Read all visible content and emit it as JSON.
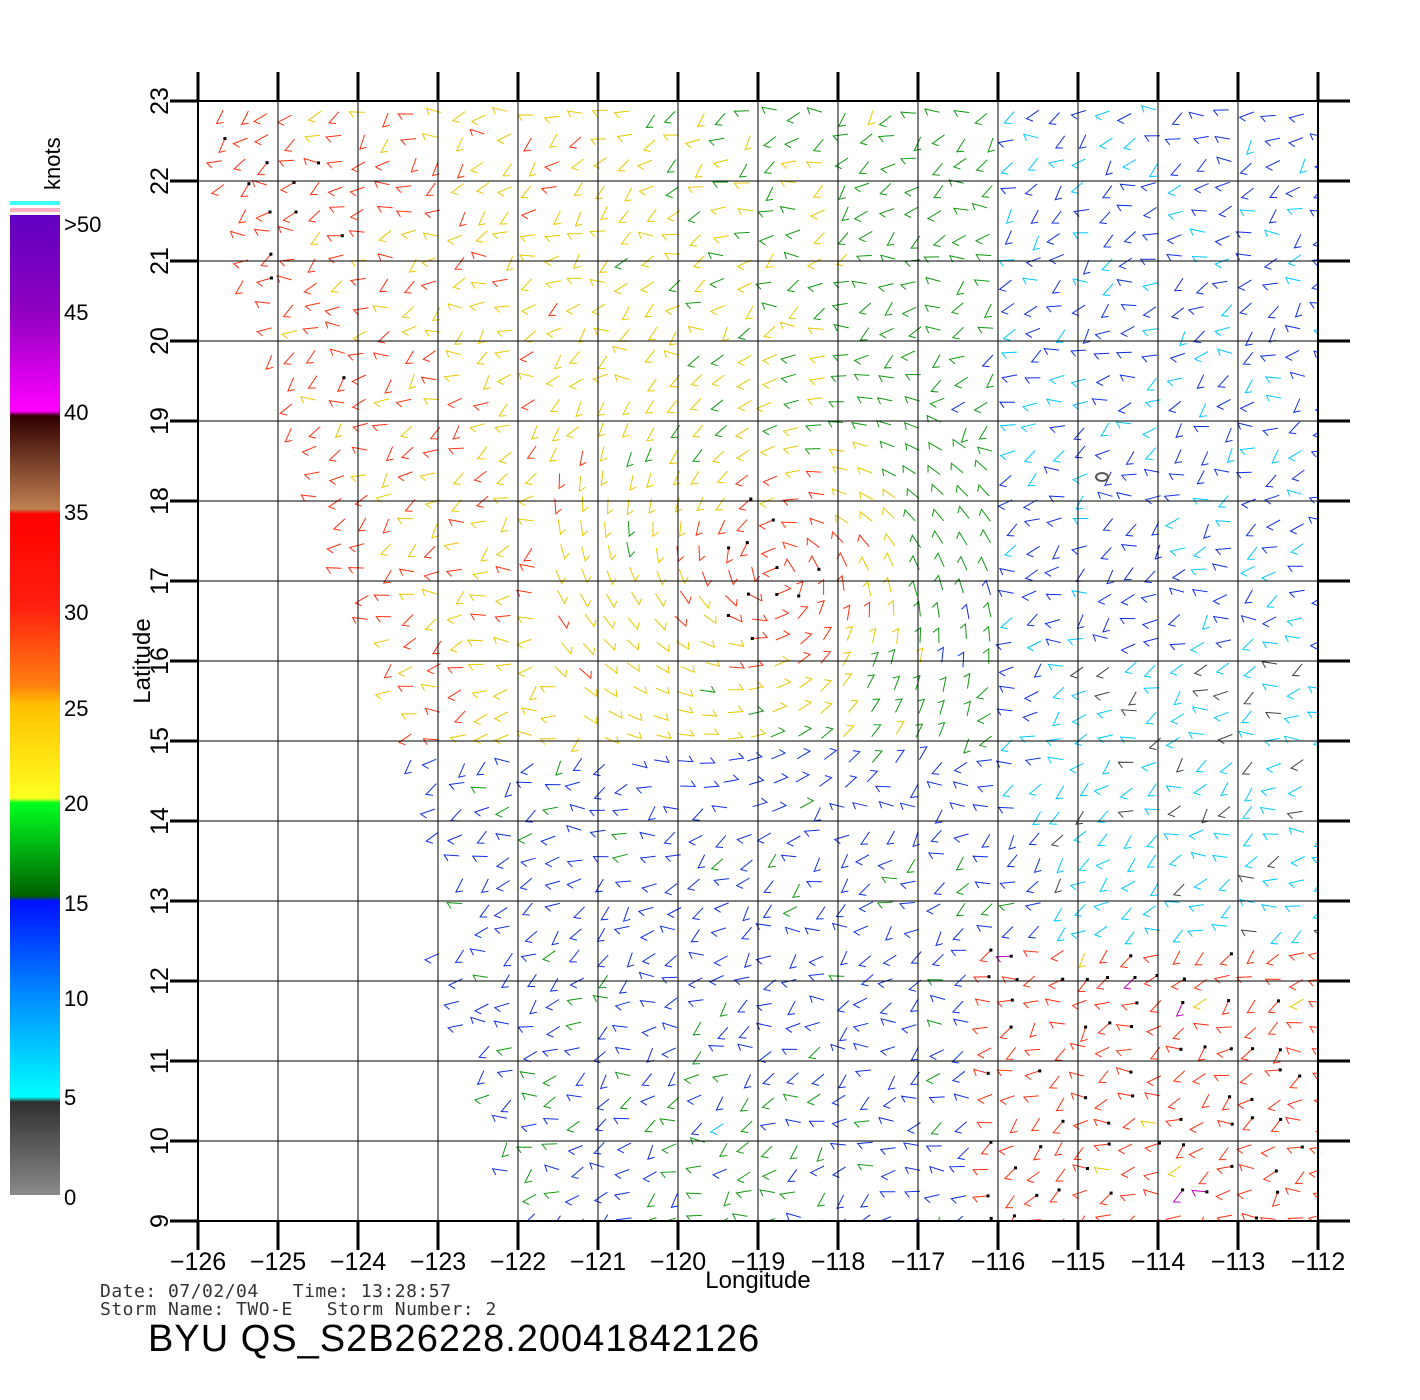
{
  "chart_data": {
    "type": "wind-barb-map",
    "xlabel": "Longitude",
    "ylabel": "Latitude",
    "x_ticks": [
      -126,
      -125,
      -124,
      -123,
      -122,
      -121,
      -120,
      -119,
      -118,
      -117,
      -116,
      -115,
      -114,
      -113,
      -112
    ],
    "y_ticks": [
      9,
      10,
      11,
      12,
      13,
      14,
      15,
      16,
      17,
      18,
      19,
      20,
      21,
      22,
      23
    ],
    "xlim": [
      -126,
      -111.5
    ],
    "ylim": [
      9,
      23
    ],
    "grid": true,
    "colorbar": {
      "unit": "knots",
      "labels": [
        ">50",
        "45",
        "40",
        "35",
        "30",
        "25",
        "20",
        "15",
        "10",
        "5",
        "0"
      ],
      "bands": [
        {
          "range": [
            0,
            5
          ],
          "colors": [
            "#8a8a8a",
            "#303030"
          ]
        },
        {
          "range": [
            5,
            15
          ],
          "colors": [
            "#00ffff",
            "#0090ff",
            "#0010ff"
          ]
        },
        {
          "range": [
            15,
            20
          ],
          "colors": [
            "#006000",
            "#00ff20"
          ]
        },
        {
          "range": [
            20,
            25
          ],
          "colors": [
            "#ffff20",
            "#ffc000"
          ]
        },
        {
          "range": [
            25,
            35
          ],
          "colors": [
            "#ff8010",
            "#ff2010",
            "#ff0000"
          ]
        },
        {
          "range": [
            35,
            40
          ],
          "colors": [
            "#c08050",
            "#300000"
          ]
        },
        {
          "range": [
            40,
            50
          ],
          "colors": [
            "#ff00ff",
            "#9000c0",
            "#6000c0"
          ]
        }
      ],
      "top_stripes": [
        "#40ffff",
        "#ffb0c0"
      ]
    },
    "storm_center": {
      "lon": -114.7,
      "lat": 18.3
    }
  },
  "metadata": {
    "line1": "Date: 07/02/04   Time: 13:28:57",
    "line2": "Storm Name: TWO-E   Storm Number: 2",
    "title": "BYU QS_S2B26228.20041842126"
  }
}
